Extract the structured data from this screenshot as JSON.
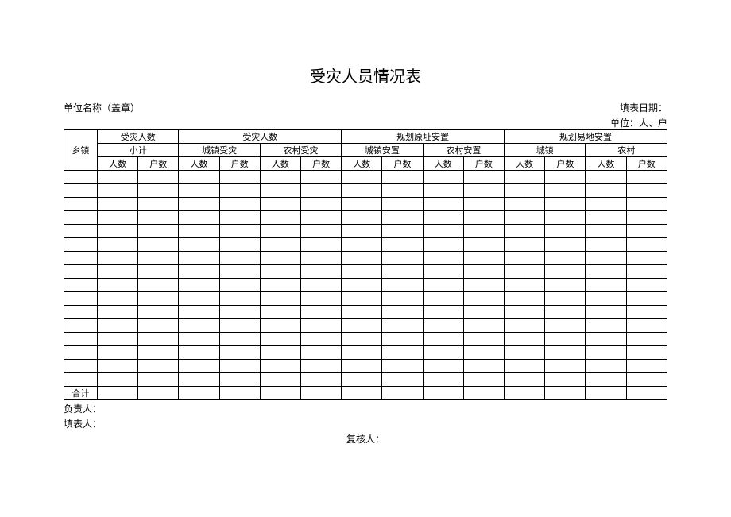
{
  "title": "受灾人员情况表",
  "header": {
    "org_label": "单位名称（盖章）",
    "fill_date_label": "填表日期：",
    "unit_label": "单位：人、户"
  },
  "table": {
    "col_town": "乡镇",
    "group1": {
      "title": "受灾人数",
      "sub": "小计",
      "cols": [
        "人数",
        "户数"
      ]
    },
    "group2": {
      "title": "受灾人数",
      "sub1": "城镇受灾",
      "sub2": "农村受灾",
      "cols": [
        "人数",
        "户数",
        "人数",
        "户数"
      ]
    },
    "group3": {
      "title": "规划原址安置",
      "sub1": "城镇安置",
      "sub2": "农村安置",
      "cols": [
        "人数",
        "户数",
        "人数",
        "户数"
      ]
    },
    "group4": {
      "title": "规划易地安置",
      "sub1": "城镇",
      "sub2": "农村",
      "cols": [
        "人数",
        "户数",
        "人数",
        "户数"
      ]
    },
    "total_label": "合计",
    "data_row_count": 16
  },
  "footer": {
    "responsible": "负责人：",
    "filler": "填表人：",
    "reviewer": "复核人："
  },
  "style": {
    "background_color": "#ffffff",
    "border_color": "#000000",
    "text_color": "#000000",
    "title_fontsize": 20,
    "body_fontsize": 12,
    "cell_fontsize": 11
  }
}
